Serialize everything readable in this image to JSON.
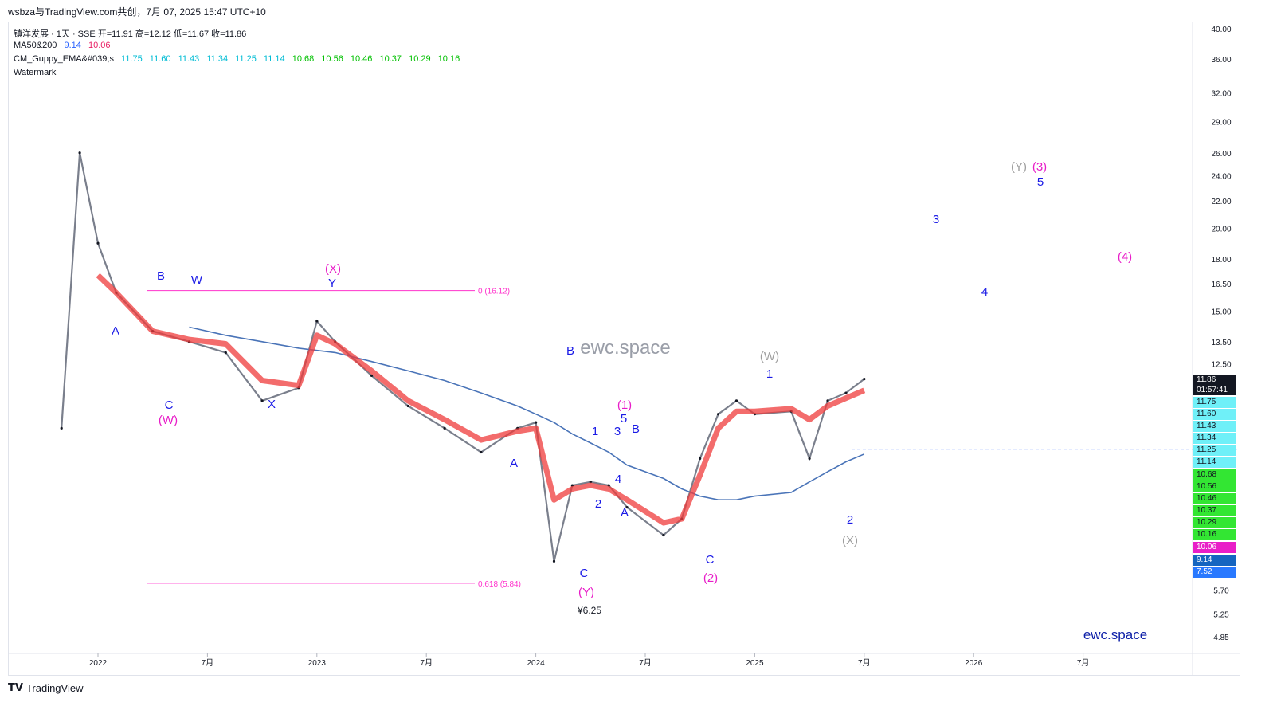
{
  "header": {
    "title": "wsbza与TradingView.com共创，7月 07, 2025 15:47 UTC+10"
  },
  "legend": {
    "symbol_line": "镇洋发展 · 1天 · SSE   开=11.91   高=12.12   低=11.67   收=11.86",
    "ma_name": "MA50&200",
    "ma_values": [
      "9.14",
      "10.06"
    ],
    "ma_colors": [
      "#2962ff",
      "#e91e63"
    ],
    "guppy_name": "CM_Guppy_EMA&#039;s",
    "guppy_fast": [
      "11.75",
      "11.60",
      "11.43",
      "11.34",
      "11.25",
      "11.14"
    ],
    "guppy_slow": [
      "10.68",
      "10.56",
      "10.46",
      "10.37",
      "10.29",
      "10.16"
    ],
    "guppy_fast_color": "#00bcd4",
    "guppy_slow_color": "#00c000",
    "watermark_line": "Watermark"
  },
  "watermark": {
    "center_text": "ewc.space",
    "corner_text": "ewc.space"
  },
  "footer": {
    "brand": "TradingView"
  },
  "price_axis": {
    "ticks": [
      "40.00",
      "36.00",
      "32.00",
      "29.00",
      "26.00",
      "24.00",
      "22.00",
      "20.00",
      "18.00",
      "16.50",
      "15.00",
      "13.50",
      "12.50",
      "5.70",
      "5.25",
      "4.85"
    ],
    "tags": [
      {
        "label": "11.86",
        "sub": "01:57:41",
        "bg": "#131722",
        "fg": "#ffffff"
      },
      {
        "label": "11.75",
        "bg": "#6ff0f8",
        "fg": "#131722"
      },
      {
        "label": "11.60",
        "bg": "#6ff0f8",
        "fg": "#131722"
      },
      {
        "label": "11.43",
        "bg": "#6ff0f8",
        "fg": "#131722"
      },
      {
        "label": "11.34",
        "bg": "#6ff0f8",
        "fg": "#131722"
      },
      {
        "label": "11.25",
        "bg": "#6ff0f8",
        "fg": "#131722"
      },
      {
        "label": "11.14",
        "bg": "#6ff0f8",
        "fg": "#131722"
      },
      {
        "label": "10.68",
        "bg": "#33e633",
        "fg": "#131722"
      },
      {
        "label": "10.56",
        "bg": "#33e633",
        "fg": "#131722"
      },
      {
        "label": "10.46",
        "bg": "#33e633",
        "fg": "#131722"
      },
      {
        "label": "10.37",
        "bg": "#33e633",
        "fg": "#131722"
      },
      {
        "label": "10.29",
        "bg": "#33e633",
        "fg": "#131722"
      },
      {
        "label": "10.16",
        "bg": "#33e633",
        "fg": "#131722"
      },
      {
        "label": "10.06",
        "bg": "#e91ec8",
        "fg": "#ffffff"
      },
      {
        "label": "9.14",
        "bg": "#1565c0",
        "fg": "#ffffff"
      },
      {
        "label": "7.52",
        "bg": "#2979ff",
        "fg": "#ffffff"
      }
    ]
  },
  "time_axis": {
    "ticks": [
      "2022",
      "7月",
      "2023",
      "7月",
      "2024",
      "7月",
      "2025",
      "7月",
      "2026",
      "7月"
    ]
  },
  "fib": {
    "level_0": "0 (16.12)",
    "level_618": "0.618 (5.84)",
    "color": "#ff33cc"
  },
  "low_label": "¥6.25",
  "wave_labels": {
    "blue": [
      "A",
      "B",
      "W",
      "C",
      "X",
      "Y",
      "A",
      "B",
      "1",
      "2",
      "3",
      "4",
      "5",
      "B",
      "A",
      "C",
      "C",
      "1",
      "2",
      "3",
      "4",
      "5"
    ],
    "magenta": [
      "(W)",
      "(X)",
      "(Y)",
      "(1)",
      "(2)",
      "(3)",
      "(4)"
    ],
    "gray": [
      "(W)",
      "(X)",
      "(Y)"
    ]
  },
  "chart_data": {
    "type": "line",
    "title": "镇洋发展 · 1天 · SSE",
    "xlabel": "",
    "ylabel": "",
    "scale": "log",
    "x": [
      "2021-11",
      "2021-12",
      "2022-01",
      "2022-02",
      "2022-04",
      "2022-06",
      "2022-08",
      "2022-10",
      "2022-12",
      "2023-01",
      "2023-02",
      "2023-04",
      "2023-06",
      "2023-08",
      "2023-10",
      "2023-12",
      "2024-01",
      "2024-02",
      "2024-03",
      "2024-04",
      "2024-05",
      "2024-06",
      "2024-08",
      "2024-09",
      "2024-10",
      "2024-11",
      "2024-12",
      "2025-01",
      "2025-03",
      "2025-04",
      "2025-05",
      "2025-06",
      "2025-07"
    ],
    "series": [
      {
        "values": [
          10,
          26,
          19,
          16,
          14,
          13.5,
          13,
          11,
          11.5,
          14.5,
          13.5,
          12,
          10.8,
          10,
          9.2,
          10,
          10.2,
          6.3,
          8.2,
          8.3,
          8.2,
          7.6,
          6.9,
          7.3,
          9,
          10.5,
          11,
          10.5,
          10.6,
          9,
          11,
          11.3,
          11.86
        ]
      },
      {
        "values": [
          null,
          null,
          null,
          null,
          null,
          14.2,
          13.8,
          13.5,
          13.2,
          13.1,
          13.0,
          12.6,
          12.2,
          11.8,
          11.3,
          10.8,
          10.5,
          10.2,
          9.8,
          9.5,
          9.2,
          8.8,
          8.4,
          8.1,
          7.9,
          7.8,
          7.8,
          7.9,
          8.0,
          8.3,
          8.6,
          8.9,
          9.14
        ]
      }
    ],
    "ylim": [
      4.85,
      40.0
    ],
    "grid": false,
    "legend": "top-left"
  }
}
